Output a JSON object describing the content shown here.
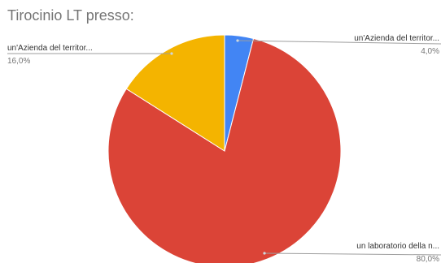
{
  "chart_data": {
    "type": "pie",
    "title": "Tirocinio LT presso:",
    "slices": [
      {
        "label": "un'Azienda del territor...",
        "value": 4.0,
        "display": "4,0%",
        "color": "#4285F4"
      },
      {
        "label": "un laboratorio della n...",
        "value": 80.0,
        "display": "80,0%",
        "color": "#DB4437"
      },
      {
        "label": "un'Azienda del territor...",
        "value": 16.0,
        "display": "16,0%",
        "color": "#F4B400"
      }
    ],
    "start_angle": "12 o'clock",
    "direction": "clockwise",
    "legend": "none (callout labels)"
  }
}
